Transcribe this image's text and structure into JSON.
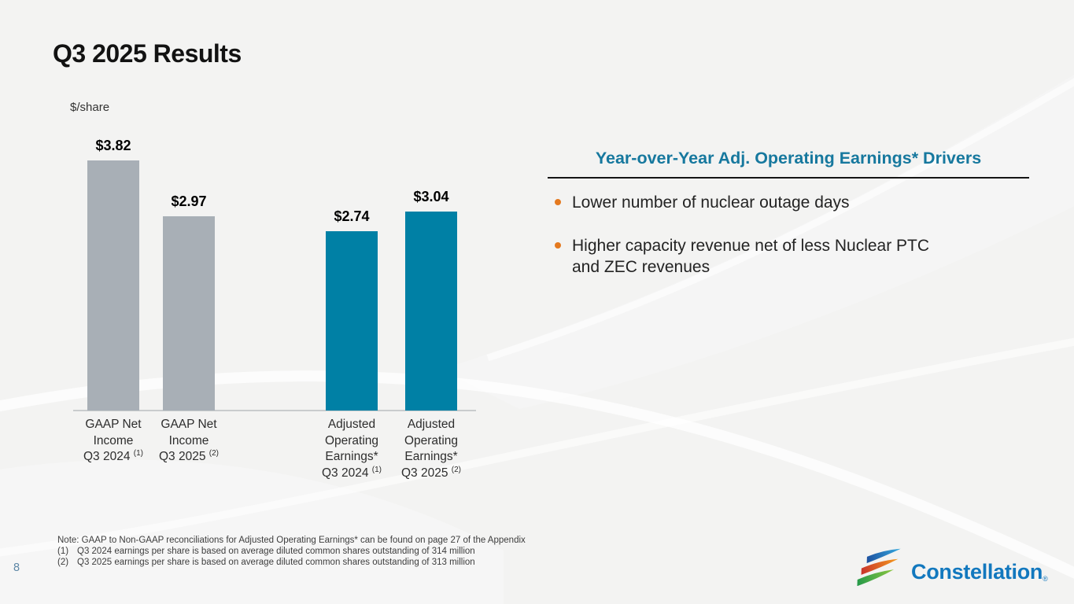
{
  "slide": {
    "title": "Q3 2025 Results",
    "page_number": "8"
  },
  "chart_data": {
    "type": "bar",
    "title": "Q3 2025 Results",
    "ylabel": "$/share",
    "units_label": "$/share",
    "categories": [
      "GAAP Net Income Q3 2024 (1)",
      "GAAP Net Income Q3 2025 (2)",
      "Adjusted Operating Earnings* Q3 2024 (1)",
      "Adjusted Operating Earnings* Q3 2025 (2)"
    ],
    "values": [
      3.82,
      2.97,
      2.74,
      3.04
    ],
    "ylim": [
      0,
      4.2
    ],
    "grid": false,
    "legend": "none",
    "bars": [
      {
        "label_lines": [
          "GAAP Net",
          "Income"
        ],
        "year_line": "Q3 2024",
        "footnote_ref": "(1)",
        "value": 3.82,
        "display_value": "$3.82",
        "color": "#a8afb6"
      },
      {
        "label_lines": [
          "GAAP Net",
          "Income"
        ],
        "year_line": "Q3 2025",
        "footnote_ref": "(2)",
        "value": 2.97,
        "display_value": "$2.97",
        "color": "#a8afb6"
      },
      {
        "label_lines": [
          "Adjusted",
          "Operating",
          "Earnings*"
        ],
        "year_line": "Q3 2024",
        "footnote_ref": "(1)",
        "value": 2.74,
        "display_value": "$2.74",
        "color": "#0080a5"
      },
      {
        "label_lines": [
          "Adjusted",
          "Operating",
          "Earnings*"
        ],
        "year_line": "Q3 2025",
        "footnote_ref": "(2)",
        "value": 3.04,
        "display_value": "$3.04",
        "color": "#0080a5"
      }
    ]
  },
  "drivers_panel": {
    "heading": "Year-over-Year Adj. Operating Earnings* Drivers",
    "heading_color": "#16789e",
    "bullet_color": "#e4791f",
    "bullets": [
      "Lower number of nuclear outage days",
      "Higher capacity revenue net of less Nuclear PTC and ZEC revenues"
    ]
  },
  "footnotes": [
    {
      "marker": "",
      "text": "Note: GAAP to Non-GAAP reconciliations for Adjusted Operating Earnings* can be found on page 27 of the Appendix"
    },
    {
      "marker": "(1)",
      "text": "Q3 2024 earnings per share is based on average diluted common shares outstanding of 314 million"
    },
    {
      "marker": "(2)",
      "text": "Q3 2025 earnings per share is based on average diluted common shares outstanding of 313 million"
    }
  ],
  "logo": {
    "text": "Constellation",
    "registered_mark": "®",
    "text_color": "#1278be",
    "stripe_colors_start": [
      "#1d4f9e",
      "#c8322b",
      "#23994a"
    ],
    "stripe_colors_end": [
      "#35aadf",
      "#f59b1e",
      "#8dc63f"
    ]
  }
}
